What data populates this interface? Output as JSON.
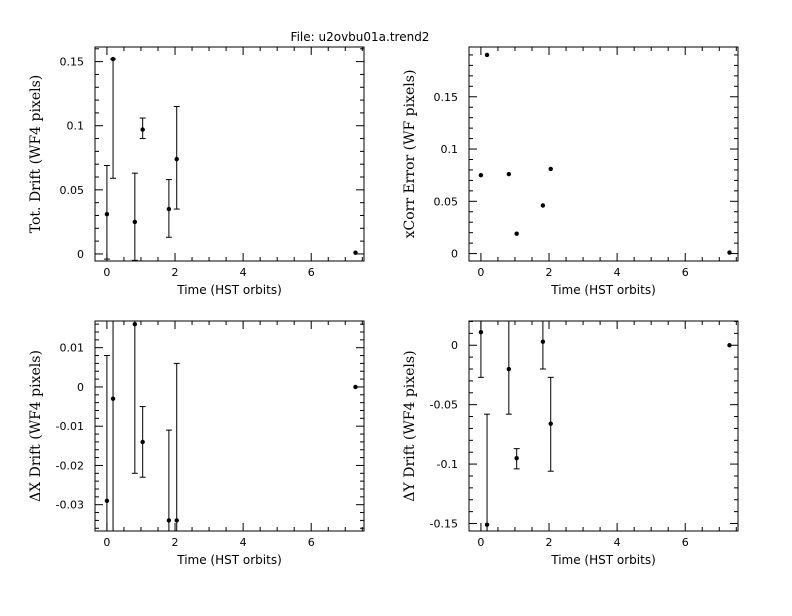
{
  "title": "File: u2ovbu01a.trend2",
  "chart_data": [
    {
      "type": "scatter",
      "xlabel": "Time (HST orbits)",
      "ylabel": "Tot. Drift (WF4 pixels)",
      "xlim": [
        -0.35,
        7.55
      ],
      "ylim": [
        -0.0055,
        0.1614
      ],
      "xticks": [
        0,
        2,
        4,
        6
      ],
      "xtick_labels": [
        "0",
        "2",
        "4",
        "6"
      ],
      "yticks": [
        0,
        0.05,
        0.1,
        0.15
      ],
      "ytick_labels": [
        "0",
        "0.05",
        "0.1",
        "0.15"
      ],
      "points": [
        {
          "x": 0.0,
          "y": 0.031,
          "err_low": -0.004,
          "err_high": 0.069
        },
        {
          "x": 0.18,
          "y": 0.152,
          "err_low": 0.059,
          "err_high": 0.152
        },
        {
          "x": 0.82,
          "y": 0.025,
          "err_low": -0.005,
          "err_high": 0.063
        },
        {
          "x": 1.05,
          "y": 0.097,
          "err_low": 0.09,
          "err_high": 0.106
        },
        {
          "x": 1.82,
          "y": 0.035,
          "err_low": 0.013,
          "err_high": 0.058
        },
        {
          "x": 2.05,
          "y": 0.074,
          "err_low": 0.035,
          "err_high": 0.115
        },
        {
          "x": 7.3,
          "y": 0.001
        }
      ]
    },
    {
      "type": "scatter",
      "xlabel": "Time (HST orbits)",
      "ylabel": "xCorr Error (WF pixels)",
      "xlim": [
        -0.35,
        7.55
      ],
      "ylim": [
        -0.0071,
        0.1976
      ],
      "xticks": [
        0,
        2,
        4,
        6
      ],
      "xtick_labels": [
        "0",
        "2",
        "4",
        "6"
      ],
      "yticks": [
        0,
        0.05,
        0.1,
        0.15
      ],
      "ytick_labels": [
        "0",
        "0.05",
        "0.1",
        "0.15"
      ],
      "points": [
        {
          "x": 0.0,
          "y": 0.075
        },
        {
          "x": 0.18,
          "y": 0.19
        },
        {
          "x": 0.82,
          "y": 0.076
        },
        {
          "x": 1.05,
          "y": 0.019
        },
        {
          "x": 1.82,
          "y": 0.046
        },
        {
          "x": 2.05,
          "y": 0.081
        },
        {
          "x": 7.3,
          "y": 0.001
        }
      ]
    },
    {
      "type": "scatter",
      "xlabel": "Time (HST orbits)",
      "ylabel": "ΔX Drift (WF4 pixels)",
      "xlim": [
        -0.35,
        7.55
      ],
      "ylim": [
        -0.0367,
        0.0168
      ],
      "xticks": [
        0,
        2,
        4,
        6
      ],
      "xtick_labels": [
        "0",
        "2",
        "4",
        "6"
      ],
      "yticks": [
        0.01,
        0,
        -0.01,
        -0.02,
        -0.03
      ],
      "ytick_labels": [
        "0.01",
        "0",
        "-0.01",
        "-0.02",
        "-0.03"
      ],
      "points": [
        {
          "x": 0.0,
          "y": -0.029,
          "err_low": -0.0367,
          "err_high": 0.008
        },
        {
          "x": 0.18,
          "y": -0.003,
          "err_low": -0.0367,
          "err_high": 0.0168
        },
        {
          "x": 0.82,
          "y": 0.016,
          "err_low": -0.022,
          "err_high": 0.0168
        },
        {
          "x": 1.05,
          "y": -0.014,
          "err_low": -0.023,
          "err_high": -0.005
        },
        {
          "x": 1.82,
          "y": -0.034,
          "err_low": -0.0367,
          "err_high": -0.011
        },
        {
          "x": 2.05,
          "y": -0.034,
          "err_low": -0.0367,
          "err_high": 0.006
        },
        {
          "x": 7.3,
          "y": 0.0
        }
      ]
    },
    {
      "type": "scatter",
      "xlabel": "Time (HST orbits)",
      "ylabel": "ΔY Drift (WF4 pixels)",
      "xlim": [
        -0.35,
        7.55
      ],
      "ylim": [
        -0.1563,
        0.0204
      ],
      "xticks": [
        0,
        2,
        4,
        6
      ],
      "xtick_labels": [
        "0",
        "2",
        "4",
        "6"
      ],
      "yticks": [
        0,
        -0.05,
        -0.1,
        -0.15
      ],
      "ytick_labels": [
        "0",
        "-0.05",
        "-0.1",
        "-0.15"
      ],
      "points": [
        {
          "x": 0.0,
          "y": 0.011,
          "err_low": -0.027,
          "err_high": 0.0204
        },
        {
          "x": 0.18,
          "y": -0.151,
          "err_low": -0.1563,
          "err_high": -0.058
        },
        {
          "x": 0.82,
          "y": -0.02,
          "err_low": -0.058,
          "err_high": 0.0204
        },
        {
          "x": 1.05,
          "y": -0.095,
          "err_low": -0.104,
          "err_high": -0.087
        },
        {
          "x": 1.82,
          "y": 0.003,
          "err_low": -0.02,
          "err_high": 0.0204
        },
        {
          "x": 2.05,
          "y": -0.066,
          "err_low": -0.106,
          "err_high": -0.027
        },
        {
          "x": 7.3,
          "y": 0.0
        }
      ]
    }
  ]
}
